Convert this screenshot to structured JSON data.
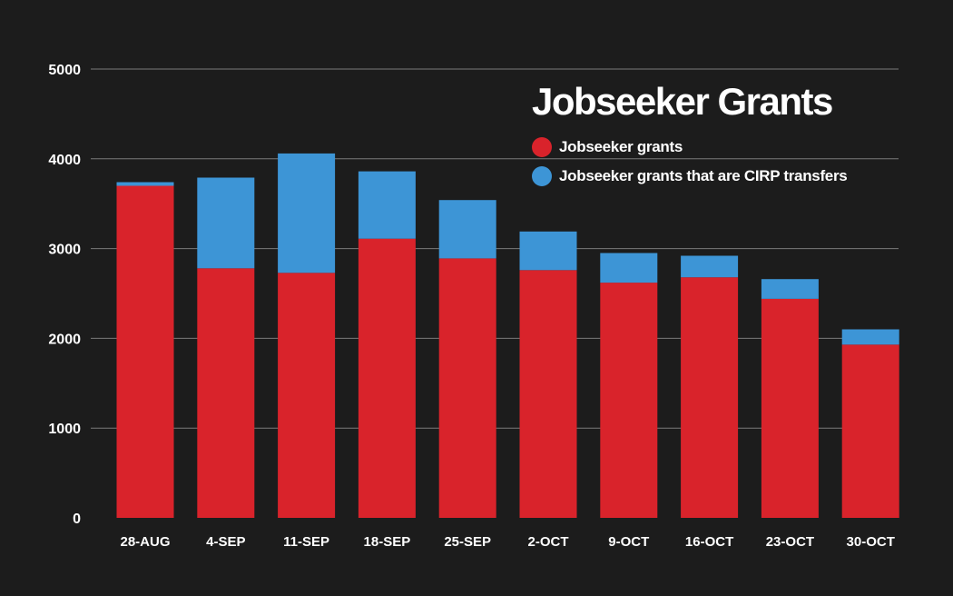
{
  "chart_data": {
    "type": "bar",
    "stacked": true,
    "title": "Jobseeker Grants",
    "xlabel": "",
    "ylabel": "",
    "ylim": [
      0,
      5000
    ],
    "yticks": [
      0,
      1000,
      2000,
      3000,
      4000,
      5000
    ],
    "grid": true,
    "legend_position": "top-right",
    "categories": [
      "28-AUG",
      "4-SEP",
      "11-SEP",
      "18-SEP",
      "25-SEP",
      "2-OCT",
      "9-OCT",
      "16-OCT",
      "23-OCT",
      "30-OCT"
    ],
    "series": [
      {
        "name": "Jobseeker grants",
        "color": "#d9232b",
        "values": [
          3700,
          2780,
          2730,
          3110,
          2890,
          2760,
          2620,
          2680,
          2440,
          1930
        ]
      },
      {
        "name": "Jobseeker grants that are CIRP transfers",
        "color": "#3d95d6",
        "values": [
          40,
          1010,
          1330,
          750,
          650,
          430,
          330,
          240,
          220,
          170
        ]
      }
    ]
  },
  "colors": {
    "background": "#1c1c1c",
    "grid": "#7a7a7a",
    "text": "#ffffff"
  }
}
